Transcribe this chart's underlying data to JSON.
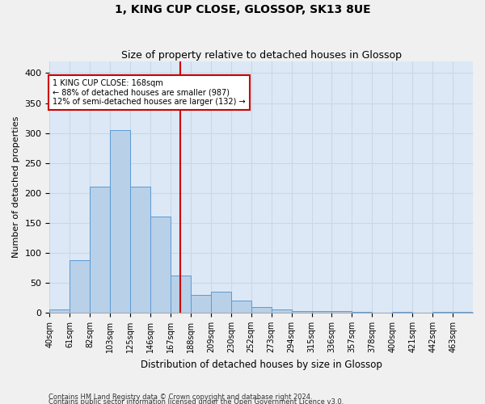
{
  "title": "1, KING CUP CLOSE, GLOSSOP, SK13 8UE",
  "subtitle": "Size of property relative to detached houses in Glossop",
  "xlabel": "Distribution of detached houses by size in Glossop",
  "ylabel": "Number of detached properties",
  "bar_color": "#b8d0e8",
  "bar_edge_color": "#5b9bd5",
  "grid_color": "#c8d8ea",
  "bg_color": "#dce8f5",
  "vline_color": "#cc0000",
  "vline_bin_index": 6.5,
  "annotation_text": "1 KING CUP CLOSE: 168sqm\n← 88% of detached houses are smaller (987)\n12% of semi-detached houses are larger (132) →",
  "annotation_box_color": "#ffffff",
  "annotation_box_edge": "#cc0000",
  "footnote1": "Contains HM Land Registry data © Crown copyright and database right 2024.",
  "footnote2": "Contains public sector information licensed under the Open Government Licence v3.0.",
  "categories": [
    "40sqm",
    "61sqm",
    "82sqm",
    "103sqm",
    "125sqm",
    "146sqm",
    "167sqm",
    "188sqm",
    "209sqm",
    "230sqm",
    "252sqm",
    "273sqm",
    "294sqm",
    "315sqm",
    "336sqm",
    "357sqm",
    "378sqm",
    "400sqm",
    "421sqm",
    "442sqm",
    "463sqm"
  ],
  "values": [
    5,
    88,
    210,
    305,
    210,
    160,
    62,
    30,
    35,
    20,
    10,
    5,
    3,
    2,
    2,
    1,
    0,
    1,
    0,
    1,
    1
  ],
  "ylim": [
    0,
    420
  ],
  "yticks": [
    0,
    50,
    100,
    150,
    200,
    250,
    300,
    350,
    400
  ],
  "figsize": [
    6.0,
    5.0
  ],
  "dpi": 100
}
